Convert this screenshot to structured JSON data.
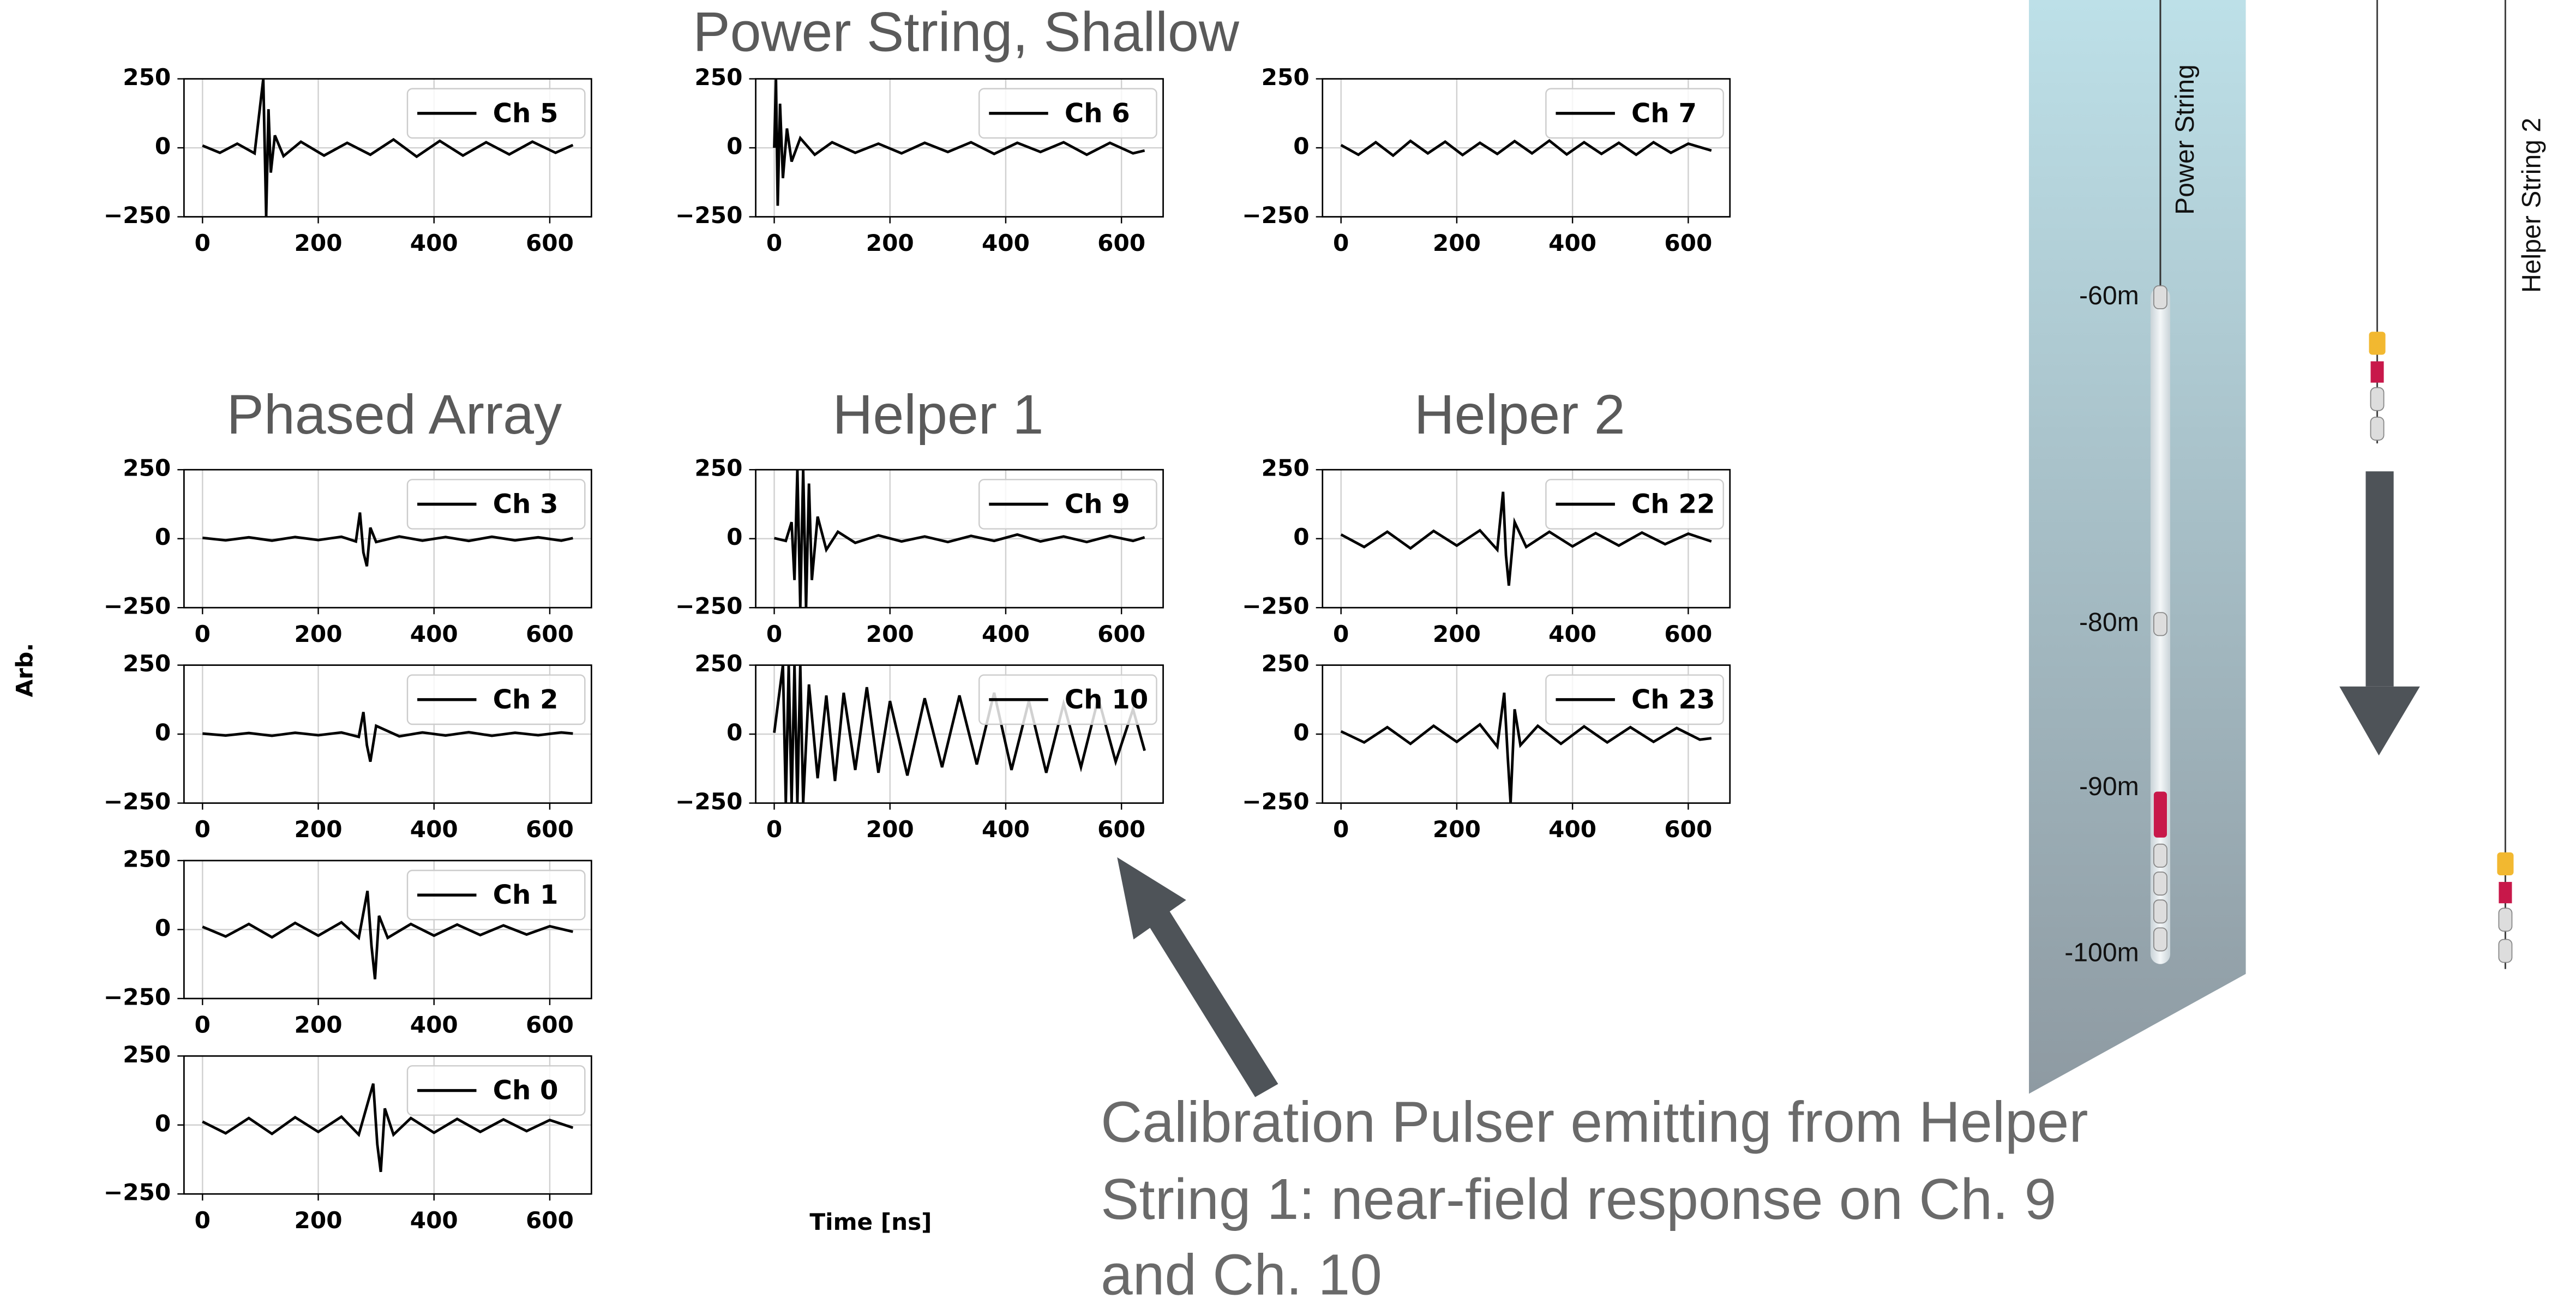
{
  "figure": {
    "titles": [
      "Power String, Shallow",
      "Phased Array",
      "Helper 1",
      "Helper 2"
    ],
    "ylabel": "Arb.",
    "xlabel": "Time [ns]",
    "annotation": [
      "Calibration Pulser emitting from Helper",
      "String 1: near-field response on Ch. 9",
      "and Ch. 10"
    ]
  },
  "diagram": {
    "depths": [
      "-60m",
      "-80m",
      "-90m",
      "-100m"
    ],
    "strings": [
      "Power String",
      "Helper String 2"
    ]
  },
  "chart_data": [
    {
      "type": "line",
      "x": [
        0,
        30,
        60,
        90,
        105,
        110,
        114,
        118,
        125,
        140,
        170,
        210,
        250,
        290,
        330,
        370,
        410,
        450,
        490,
        530,
        570,
        610,
        640
      ],
      "series": [
        {
          "name": "Ch 5",
          "color": "#000000",
          "values": [
            8,
            -18,
            15,
            -20,
            250,
            -250,
            140,
            -90,
            45,
            -30,
            22,
            -28,
            18,
            -25,
            30,
            -32,
            25,
            -28,
            20,
            -24,
            22,
            -18,
            10
          ]
        }
      ],
      "xlim": [
        -32,
        672
      ],
      "ylim": [
        -250,
        250
      ],
      "xticks": [
        0,
        200,
        400,
        600
      ],
      "yticks": [
        {
          "value": -250,
          "label": "−250"
        },
        0,
        250
      ],
      "grid": true,
      "legend": "upper right"
    },
    {
      "type": "line",
      "x": [
        0,
        3,
        6,
        10,
        15,
        22,
        30,
        45,
        70,
        100,
        140,
        180,
        220,
        260,
        300,
        340,
        380,
        420,
        460,
        500,
        540,
        580,
        620,
        640
      ],
      "series": [
        {
          "name": "Ch 6",
          "color": "#000000",
          "values": [
            0,
            250,
            -210,
            160,
            -110,
            70,
            -50,
            35,
            -25,
            20,
            -18,
            15,
            -20,
            18,
            -15,
            20,
            -22,
            18,
            -15,
            20,
            -25,
            18,
            -20,
            -10
          ]
        }
      ],
      "xlim": [
        -32,
        672
      ],
      "ylim": [
        -250,
        250
      ],
      "xticks": [
        0,
        200,
        400,
        600
      ],
      "yticks": [
        {
          "value": -250,
          "label": "−250"
        },
        0,
        250
      ],
      "grid": true,
      "legend": "upper right"
    },
    {
      "type": "line",
      "x": [
        0,
        30,
        60,
        90,
        120,
        150,
        180,
        210,
        240,
        270,
        300,
        330,
        360,
        390,
        420,
        450,
        480,
        510,
        540,
        570,
        600,
        640
      ],
      "series": [
        {
          "name": "Ch 7",
          "color": "#000000",
          "values": [
            10,
            -25,
            20,
            -28,
            25,
            -20,
            22,
            -26,
            18,
            -22,
            24,
            -20,
            26,
            -24,
            20,
            -22,
            18,
            -25,
            20,
            -18,
            15,
            -10
          ]
        }
      ],
      "xlim": [
        -32,
        672
      ],
      "ylim": [
        -250,
        250
      ],
      "xticks": [
        0,
        200,
        400,
        600
      ],
      "yticks": [
        {
          "value": -250,
          "label": "−250"
        },
        0,
        250
      ],
      "grid": true,
      "legend": "upper right"
    },
    {
      "type": "line",
      "x": [
        0,
        40,
        80,
        120,
        160,
        200,
        240,
        265,
        272,
        278,
        284,
        290,
        300,
        340,
        380,
        420,
        460,
        500,
        540,
        580,
        620,
        640
      ],
      "series": [
        {
          "name": "Ch 3",
          "color": "#000000",
          "values": [
            3,
            -6,
            5,
            -7,
            6,
            -5,
            7,
            -10,
            95,
            -50,
            -100,
            40,
            -12,
            8,
            -7,
            6,
            -8,
            7,
            -6,
            5,
            -7,
            2
          ]
        }
      ],
      "xlim": [
        -32,
        672
      ],
      "ylim": [
        -250,
        250
      ],
      "xticks": [
        0,
        200,
        400,
        600
      ],
      "yticks": [
        {
          "value": -250,
          "label": "−250"
        },
        0,
        250
      ],
      "grid": true,
      "legend": "upper right"
    },
    {
      "type": "line",
      "x": [
        0,
        20,
        30,
        35,
        40,
        45,
        50,
        55,
        60,
        65,
        75,
        90,
        110,
        140,
        180,
        220,
        260,
        300,
        340,
        380,
        420,
        460,
        500,
        540,
        580,
        620,
        640
      ],
      "series": [
        {
          "name": "Ch 9",
          "color": "#000000",
          "values": [
            2,
            -8,
            60,
            -150,
            250,
            -250,
            250,
            -250,
            200,
            -150,
            80,
            -40,
            25,
            -15,
            12,
            -10,
            8,
            -12,
            10,
            -8,
            15,
            -10,
            8,
            -12,
            10,
            -8,
            5
          ]
        }
      ],
      "xlim": [
        -32,
        672
      ],
      "ylim": [
        -250,
        250
      ],
      "xticks": [
        0,
        200,
        400,
        600
      ],
      "yticks": [
        {
          "value": -250,
          "label": "−250"
        },
        0,
        250
      ],
      "grid": true,
      "legend": "upper right"
    },
    {
      "type": "line",
      "x": [
        0,
        40,
        80,
        120,
        160,
        200,
        240,
        270,
        280,
        285,
        290,
        300,
        320,
        360,
        400,
        440,
        480,
        520,
        560,
        600,
        640
      ],
      "series": [
        {
          "name": "Ch 22",
          "color": "#000000",
          "values": [
            15,
            -30,
            25,
            -35,
            28,
            -25,
            30,
            -40,
            170,
            -60,
            -170,
            60,
            -30,
            25,
            -28,
            20,
            -25,
            22,
            -20,
            18,
            -10
          ]
        }
      ],
      "xlim": [
        -32,
        672
      ],
      "ylim": [
        -250,
        250
      ],
      "xticks": [
        0,
        200,
        400,
        600
      ],
      "yticks": [
        {
          "value": -250,
          "label": "−250"
        },
        0,
        250
      ],
      "grid": true,
      "legend": "upper right"
    },
    {
      "type": "line",
      "x": [
        0,
        40,
        80,
        120,
        160,
        200,
        240,
        270,
        278,
        284,
        290,
        300,
        340,
        380,
        420,
        460,
        500,
        540,
        580,
        620,
        640
      ],
      "series": [
        {
          "name": "Ch 2",
          "color": "#000000",
          "values": [
            2,
            -5,
            4,
            -6,
            5,
            -4,
            6,
            -10,
            80,
            -40,
            -100,
            30,
            -8,
            6,
            -5,
            7,
            -6,
            5,
            -4,
            6,
            2
          ]
        }
      ],
      "xlim": [
        -32,
        672
      ],
      "ylim": [
        -250,
        250
      ],
      "xticks": [
        0,
        200,
        400,
        600
      ],
      "yticks": [
        {
          "value": -250,
          "label": "−250"
        },
        0,
        250
      ],
      "grid": true,
      "legend": "upper right"
    },
    {
      "type": "line",
      "x": [
        0,
        15,
        20,
        25,
        30,
        35,
        40,
        45,
        50,
        60,
        75,
        90,
        105,
        120,
        140,
        160,
        180,
        200,
        230,
        260,
        290,
        320,
        350,
        380,
        410,
        440,
        470,
        500,
        530,
        560,
        590,
        620,
        640
      ],
      "series": [
        {
          "name": "Ch 10",
          "color": "#000000",
          "values": [
            5,
            250,
            -250,
            250,
            -250,
            250,
            -250,
            250,
            -250,
            180,
            -160,
            140,
            -170,
            150,
            -130,
            170,
            -140,
            120,
            -150,
            130,
            -120,
            140,
            -110,
            150,
            -130,
            120,
            -140,
            110,
            -120,
            130,
            -100,
            90,
            -60
          ]
        }
      ],
      "xlim": [
        -32,
        672
      ],
      "ylim": [
        -250,
        250
      ],
      "xticks": [
        0,
        200,
        400,
        600
      ],
      "yticks": [
        {
          "value": -250,
          "label": "−250"
        },
        0,
        250
      ],
      "grid": true,
      "legend": "upper right"
    },
    {
      "type": "line",
      "x": [
        0,
        40,
        80,
        120,
        160,
        200,
        240,
        270,
        282,
        288,
        293,
        300,
        310,
        340,
        380,
        420,
        460,
        500,
        540,
        580,
        620,
        640
      ],
      "series": [
        {
          "name": "Ch 23",
          "color": "#000000",
          "values": [
            10,
            -30,
            25,
            -35,
            30,
            -28,
            35,
            -45,
            150,
            -80,
            -250,
            90,
            -40,
            30,
            -35,
            28,
            -30,
            25,
            -28,
            22,
            -20,
            -15
          ]
        }
      ],
      "xlim": [
        -32,
        672
      ],
      "ylim": [
        -250,
        250
      ],
      "xticks": [
        0,
        200,
        400,
        600
      ],
      "yticks": [
        {
          "value": -250,
          "label": "−250"
        },
        0,
        250
      ],
      "grid": true,
      "legend": "upper right"
    },
    {
      "type": "line",
      "x": [
        0,
        40,
        80,
        120,
        160,
        200,
        240,
        270,
        285,
        292,
        298,
        305,
        320,
        360,
        400,
        440,
        480,
        520,
        560,
        600,
        640
      ],
      "series": [
        {
          "name": "Ch 1",
          "color": "#000000",
          "values": [
            10,
            -25,
            20,
            -28,
            24,
            -22,
            26,
            -30,
            140,
            -60,
            -180,
            50,
            -30,
            20,
            -22,
            18,
            -20,
            15,
            -18,
            12,
            -8
          ]
        }
      ],
      "xlim": [
        -32,
        672
      ],
      "ylim": [
        -250,
        250
      ],
      "xticks": [
        0,
        200,
        400,
        600
      ],
      "yticks": [
        {
          "value": -250,
          "label": "−250"
        },
        0,
        250
      ],
      "grid": true,
      "legend": "upper right"
    },
    {
      "type": "line",
      "x": [
        0,
        40,
        80,
        120,
        160,
        200,
        240,
        270,
        295,
        302,
        308,
        315,
        330,
        360,
        400,
        440,
        480,
        520,
        560,
        600,
        640
      ],
      "series": [
        {
          "name": "Ch 0",
          "color": "#000000",
          "values": [
            12,
            -30,
            25,
            -32,
            28,
            -25,
            30,
            -35,
            150,
            -70,
            -170,
            60,
            -35,
            25,
            -28,
            22,
            -25,
            20,
            -22,
            18,
            -10
          ]
        }
      ],
      "xlim": [
        -32,
        672
      ],
      "ylim": [
        -250,
        250
      ],
      "xticks": [
        0,
        200,
        400,
        600
      ],
      "yticks": [
        {
          "value": -250,
          "label": "−250"
        },
        0,
        250
      ],
      "grid": true,
      "legend": "upper right"
    }
  ]
}
